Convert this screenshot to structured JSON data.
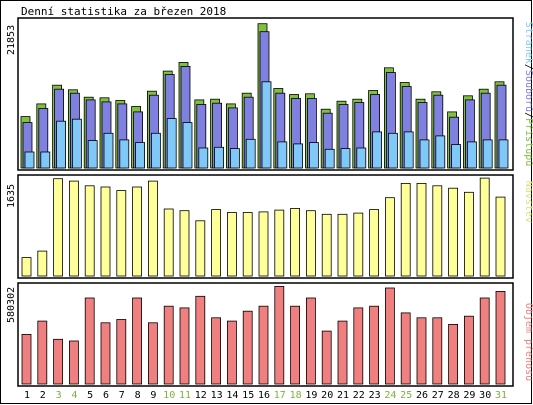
{
  "title": "Denní statistika za březen 2018",
  "colors": {
    "hits": "#80c040",
    "files": "#8080e0",
    "pages": "#80c8f8",
    "visits": "#ffff99",
    "volume": "#f08080",
    "weekend_label": "#80b040",
    "weekday_label": "#000000"
  },
  "chart_data": [
    {
      "type": "bar",
      "name": "traffic",
      "ymax": 21853,
      "ymax_label": "21853",
      "legend": [
        "Stránek",
        "Souborů",
        "Přístupů"
      ],
      "legend_separator": "/",
      "x": [
        "1",
        "2",
        "3",
        "4",
        "5",
        "6",
        "7",
        "8",
        "9",
        "10",
        "11",
        "12",
        "13",
        "14",
        "15",
        "16",
        "17",
        "18",
        "19",
        "20",
        "21",
        "22",
        "23",
        "24",
        "25",
        "26",
        "27",
        "28",
        "29",
        "30",
        "31"
      ],
      "weekend": [
        3,
        4,
        10,
        11,
        17,
        18,
        24,
        25,
        31
      ],
      "series": [
        {
          "name": "Přístupů",
          "values": [
            7700,
            9600,
            12400,
            11700,
            10600,
            10500,
            10100,
            9200,
            11500,
            14500,
            15800,
            10200,
            10300,
            9600,
            11200,
            21600,
            11900,
            11000,
            11100,
            8800,
            10000,
            10300,
            11600,
            15000,
            12800,
            10300,
            11400,
            8400,
            10800,
            11800,
            12900
          ]
        },
        {
          "name": "Souborů",
          "values": [
            6800,
            8900,
            11800,
            11200,
            10200,
            9900,
            9600,
            8400,
            10900,
            14000,
            15200,
            9500,
            9700,
            9000,
            10600,
            20400,
            11200,
            10400,
            10400,
            8200,
            9500,
            9800,
            11000,
            14300,
            12200,
            9800,
            10900,
            7600,
            10200,
            11200,
            12400
          ]
        },
        {
          "name": "Stránek",
          "values": [
            2400,
            2400,
            7000,
            7300,
            4100,
            5200,
            4200,
            3800,
            5200,
            7400,
            6800,
            3000,
            3100,
            2900,
            4300,
            12900,
            3900,
            3600,
            3800,
            2800,
            2900,
            3000,
            5400,
            5200,
            5400,
            4200,
            4800,
            3500,
            3900,
            4200,
            4200
          ]
        }
      ]
    },
    {
      "type": "bar",
      "name": "visits",
      "ymax": 1635,
      "ymax_label": "1635",
      "legend": [
        "Návštěv"
      ],
      "series": [
        {
          "name": "Návštěv",
          "values": [
            310,
            420,
            1640,
            1600,
            1520,
            1500,
            1440,
            1500,
            1600,
            1130,
            1100,
            930,
            1120,
            1070,
            1070,
            1080,
            1110,
            1140,
            1100,
            1040,
            1040,
            1060,
            1120,
            1320,
            1560,
            1560,
            1520,
            1480,
            1410,
            1650,
            1330
          ]
        }
      ]
    },
    {
      "type": "bar",
      "name": "volume",
      "ymax": 580302,
      "ymax_label": "580302",
      "legend": [
        "Objem přenosu"
      ],
      "series": [
        {
          "name": "Objem přenosu",
          "values": [
            300000,
            380000,
            270000,
            260000,
            520000,
            370000,
            390000,
            520000,
            370000,
            470000,
            460000,
            530000,
            400000,
            380000,
            440000,
            470000,
            590000,
            470000,
            520000,
            320000,
            380000,
            460000,
            470000,
            580000,
            430000,
            400000,
            400000,
            360000,
            410000,
            520000,
            560000
          ]
        }
      ]
    }
  ]
}
